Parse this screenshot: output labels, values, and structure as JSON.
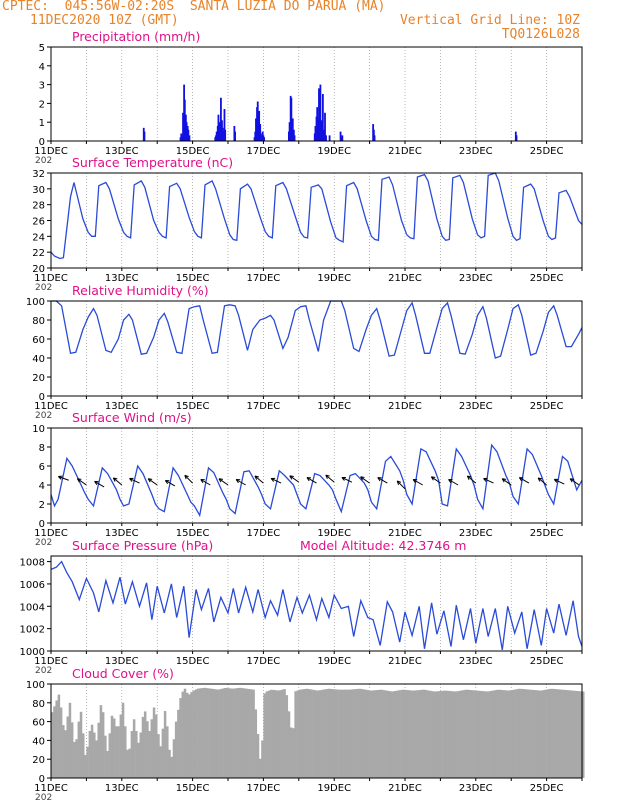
{
  "header": {
    "line1": "CPTEC:  045:56W-02:20S  SANTA LUZIA DO PARUA (MA)",
    "line2_left": "11DEC2020 10Z (GMT)",
    "line2_right": "Vertical Grid Line: 10Z",
    "line3_right": "TQ0126L028"
  },
  "colors": {
    "header": "#e8832a",
    "title": "#e0118a",
    "line": "#2a4bd7",
    "bar": "#1010e0",
    "cloud": "#a8a8a8",
    "grid": "#888888",
    "arrow": "#000000"
  },
  "x_axis": {
    "labels": [
      "11DEC",
      "13DEC",
      "15DEC",
      "17DEC",
      "19DEC",
      "21DEC",
      "23DEC",
      "25DEC"
    ],
    "label_days": [
      0,
      2,
      4,
      6,
      8,
      10,
      12,
      14
    ],
    "year_stub": "202",
    "range_days": [
      0,
      15
    ]
  },
  "chart_data": [
    {
      "id": "precip",
      "type": "bar",
      "title": "Precipitation (mm/h)",
      "ylim": [
        0,
        5
      ],
      "yticks": [
        0,
        1,
        2,
        3,
        4,
        5
      ],
      "x_unit": "day",
      "x": [
        2.62,
        2.64,
        3.66,
        3.68,
        3.71,
        3.73,
        3.76,
        3.78,
        3.81,
        3.83,
        3.86,
        3.88,
        3.91,
        4.64,
        4.66,
        4.68,
        4.71,
        4.73,
        4.76,
        4.78,
        4.8,
        4.83,
        4.85,
        4.87,
        4.9,
        4.92,
        5.18,
        5.2,
        5.75,
        5.77,
        5.79,
        5.82,
        5.84,
        5.86,
        5.88,
        5.91,
        5.93,
        5.95,
        5.98,
        6.0,
        6.02,
        6.72,
        6.74,
        6.77,
        6.79,
        6.81,
        6.83,
        6.86,
        6.88,
        7.45,
        7.47,
        7.5,
        7.52,
        7.54,
        7.57,
        7.59,
        7.61,
        7.63,
        7.66,
        7.68,
        7.7,
        7.72,
        7.74,
        7.77,
        7.87,
        8.18,
        8.2,
        8.23,
        9.1,
        9.12,
        9.14,
        13.13,
        13.15
      ],
      "values": [
        0.7,
        0.5,
        0.2,
        0.4,
        0.3,
        1.5,
        3.0,
        2.2,
        1.4,
        1.0,
        0.8,
        0.6,
        0.3,
        0.2,
        0.3,
        0.5,
        0.8,
        1.4,
        1.0,
        0.6,
        2.3,
        1.1,
        0.7,
        0.5,
        1.7,
        0.6,
        0.8,
        0.5,
        0.2,
        0.5,
        1.2,
        1.8,
        2.1,
        1.0,
        1.6,
        0.9,
        0.4,
        0.3,
        0.5,
        0.3,
        0.2,
        0.5,
        1.0,
        2.4,
        2.3,
        1.1,
        1.2,
        0.6,
        0.3,
        0.4,
        0.8,
        1.3,
        1.8,
        1.2,
        2.8,
        1.6,
        3.0,
        1.1,
        0.4,
        2.5,
        0.6,
        0.3,
        1.5,
        0.3,
        0.3,
        0.5,
        0.2,
        0.3,
        0.9,
        0.6,
        0.3,
        0.5,
        0.3
      ]
    },
    {
      "id": "temp",
      "type": "line",
      "title": "Surface Temperature (nC)",
      "ylim": [
        20,
        32
      ],
      "yticks": [
        20,
        22,
        24,
        26,
        28,
        30,
        32
      ],
      "x": [
        0,
        0.1,
        0.25,
        0.35,
        0.55,
        0.65,
        0.9,
        1.05,
        1.15,
        1.25,
        1.35,
        1.55,
        1.65,
        1.9,
        2.05,
        2.15,
        2.25,
        2.35,
        2.55,
        2.65,
        2.9,
        3.05,
        3.15,
        3.25,
        3.35,
        3.55,
        3.65,
        3.9,
        4.05,
        4.15,
        4.25,
        4.35,
        4.55,
        4.65,
        4.9,
        5.05,
        5.15,
        5.25,
        5.35,
        5.55,
        5.65,
        5.9,
        6.05,
        6.15,
        6.25,
        6.35,
        6.55,
        6.65,
        6.9,
        7.05,
        7.15,
        7.25,
        7.35,
        7.55,
        7.65,
        7.9,
        8.05,
        8.15,
        8.25,
        8.35,
        8.55,
        8.65,
        8.9,
        9.05,
        9.15,
        9.25,
        9.35,
        9.55,
        9.65,
        9.9,
        10.05,
        10.15,
        10.25,
        10.35,
        10.55,
        10.65,
        10.9,
        11.05,
        11.15,
        11.25,
        11.35,
        11.55,
        11.65,
        11.9,
        12.05,
        12.15,
        12.25,
        12.35,
        12.55,
        12.65,
        12.9,
        13.05,
        13.15,
        13.25,
        13.35,
        13.55,
        13.65,
        13.9,
        14.05,
        14.15,
        14.25,
        14.35,
        14.55,
        14.65,
        14.9,
        15.0
      ],
      "values": [
        22.0,
        21.5,
        21.2,
        21.3,
        29.0,
        30.8,
        26.2,
        24.5,
        24.0,
        24.0,
        30.4,
        30.8,
        30.0,
        26.2,
        24.5,
        24.0,
        23.8,
        30.5,
        31.0,
        30.2,
        26.0,
        24.5,
        24.0,
        23.8,
        30.3,
        30.7,
        30.0,
        26.4,
        24.6,
        24.0,
        23.8,
        30.5,
        31.0,
        30.0,
        26.2,
        24.2,
        23.6,
        23.5,
        30.0,
        30.6,
        30.0,
        26.5,
        24.6,
        24.0,
        23.8,
        30.4,
        30.8,
        30.0,
        26.5,
        24.5,
        23.9,
        23.8,
        30.2,
        30.5,
        30.0,
        25.8,
        23.8,
        23.5,
        23.3,
        30.4,
        30.8,
        30.0,
        26.0,
        24.0,
        23.6,
        23.5,
        31.2,
        31.5,
        30.5,
        26.0,
        24.2,
        23.8,
        23.7,
        31.5,
        31.8,
        31.0,
        26.2,
        24.0,
        23.5,
        23.6,
        31.4,
        31.7,
        30.8,
        26.2,
        24.2,
        23.8,
        24.0,
        31.7,
        32.0,
        31.0,
        26.3,
        24.0,
        23.5,
        23.7,
        30.2,
        30.6,
        30.0,
        26.0,
        24.0,
        23.6,
        23.8,
        29.5,
        29.8,
        29.0,
        26.0,
        25.5
      ]
    },
    {
      "id": "rh",
      "type": "line",
      "title": "Relative Humidity (%)",
      "ylim": [
        0,
        100
      ],
      "yticks": [
        0,
        20,
        40,
        60,
        80,
        100
      ],
      "x": [
        0,
        0.15,
        0.3,
        0.55,
        0.7,
        0.9,
        1.05,
        1.2,
        1.3,
        1.55,
        1.7,
        1.9,
        2.05,
        2.2,
        2.3,
        2.55,
        2.7,
        2.9,
        3.05,
        3.2,
        3.3,
        3.55,
        3.7,
        3.9,
        4.05,
        4.2,
        4.3,
        4.55,
        4.7,
        4.9,
        5.05,
        5.2,
        5.3,
        5.55,
        5.7,
        5.9,
        6.05,
        6.2,
        6.3,
        6.55,
        6.7,
        6.9,
        7.05,
        7.2,
        7.3,
        7.55,
        7.7,
        7.9,
        8.05,
        8.2,
        8.3,
        8.55,
        8.7,
        8.9,
        9.05,
        9.2,
        9.3,
        9.55,
        9.7,
        9.9,
        10.05,
        10.2,
        10.3,
        10.55,
        10.7,
        10.9,
        11.05,
        11.2,
        11.3,
        11.55,
        11.7,
        11.9,
        12.05,
        12.2,
        12.3,
        12.55,
        12.7,
        12.9,
        13.05,
        13.2,
        13.3,
        13.55,
        13.7,
        13.9,
        14.05,
        14.2,
        14.3,
        14.55,
        14.7,
        14.9,
        15.0
      ],
      "values": [
        100,
        100,
        95,
        45,
        46,
        70,
        83,
        92,
        85,
        48,
        46,
        60,
        80,
        86,
        80,
        44,
        45,
        62,
        80,
        87,
        78,
        46,
        45,
        92,
        94,
        95,
        80,
        45,
        46,
        95,
        96,
        95,
        85,
        48,
        70,
        80,
        82,
        85,
        80,
        50,
        62,
        90,
        94,
        95,
        80,
        47,
        80,
        100,
        100,
        100,
        90,
        50,
        47,
        70,
        85,
        92,
        80,
        42,
        43,
        70,
        90,
        98,
        85,
        45,
        45,
        72,
        92,
        98,
        85,
        45,
        44,
        65,
        85,
        94,
        82,
        40,
        42,
        70,
        92,
        96,
        85,
        43,
        45,
        68,
        88,
        95,
        85,
        52,
        52,
        65,
        72
      ]
    },
    {
      "id": "wind",
      "type": "line",
      "title": "Surface Wind (m/s)",
      "ylim": [
        0,
        10
      ],
      "yticks": [
        0,
        2,
        4,
        6,
        8,
        10
      ],
      "x": [
        0,
        0.1,
        0.2,
        0.45,
        0.6,
        0.85,
        0.95,
        1.05,
        1.2,
        1.45,
        1.6,
        1.85,
        1.95,
        2.05,
        2.2,
        2.45,
        2.6,
        2.85,
        2.95,
        3.05,
        3.2,
        3.45,
        3.6,
        3.85,
        3.95,
        4.05,
        4.2,
        4.45,
        4.6,
        4.85,
        4.95,
        5.05,
        5.2,
        5.45,
        5.6,
        5.85,
        5.95,
        6.05,
        6.2,
        6.45,
        6.6,
        6.85,
        6.95,
        7.05,
        7.2,
        7.45,
        7.6,
        7.85,
        7.95,
        8.05,
        8.2,
        8.45,
        8.6,
        8.85,
        8.95,
        9.05,
        9.2,
        9.45,
        9.6,
        9.85,
        9.95,
        10.05,
        10.2,
        10.45,
        10.6,
        10.85,
        10.95,
        11.05,
        11.2,
        11.45,
        11.6,
        11.85,
        11.95,
        12.05,
        12.2,
        12.45,
        12.6,
        12.85,
        12.95,
        13.05,
        13.2,
        13.45,
        13.6,
        13.85,
        13.95,
        14.05,
        14.2,
        14.45,
        14.6,
        14.85,
        15.0
      ],
      "values": [
        3.0,
        1.8,
        2.5,
        6.8,
        6.0,
        4.0,
        3.2,
        2.5,
        1.8,
        5.8,
        5.2,
        3.5,
        2.5,
        1.8,
        2.0,
        6.0,
        5.2,
        3.0,
        2.0,
        1.5,
        1.2,
        5.8,
        5.0,
        3.0,
        2.2,
        1.8,
        0.8,
        5.8,
        5.3,
        3.2,
        2.5,
        1.5,
        1.0,
        5.4,
        5.5,
        3.8,
        3.0,
        2.0,
        1.5,
        5.5,
        5.0,
        4.0,
        3.0,
        2.0,
        1.5,
        5.2,
        5.0,
        4.0,
        3.5,
        2.5,
        1.2,
        5.0,
        5.2,
        4.2,
        3.5,
        2.2,
        1.5,
        6.5,
        7.0,
        5.5,
        4.5,
        3.0,
        2.0,
        7.8,
        7.5,
        5.5,
        4.5,
        2.0,
        1.8,
        7.8,
        7.0,
        5.0,
        4.0,
        2.5,
        1.5,
        8.2,
        7.5,
        5.0,
        4.2,
        2.8,
        2.0,
        7.8,
        7.2,
        5.0,
        4.0,
        3.0,
        2.0,
        7.0,
        6.5,
        3.5,
        4.5
      ],
      "arrows_x": [
        0.5,
        1.0,
        1.5,
        2.0,
        2.5,
        3.0,
        3.5,
        4.0,
        4.5,
        5.0,
        5.5,
        6.0,
        6.5,
        7.0,
        7.5,
        8.0,
        8.5,
        9.0,
        9.5,
        10.0,
        10.5,
        11.0,
        11.5,
        12.0,
        12.5,
        13.0,
        13.5,
        14.0,
        14.5,
        14.92
      ],
      "arrows_y": [
        4.5,
        4.0,
        3.8,
        4.0,
        4.2,
        4.0,
        3.9,
        4.2,
        4.0,
        4.0,
        4.0,
        4.2,
        4.2,
        4.3,
        4.2,
        4.3,
        4.3,
        4.2,
        4.2,
        3.6,
        4.0,
        4.2,
        4.0,
        4.2,
        4.2,
        4.0,
        4.2,
        4.0,
        4.1,
        4.0
      ],
      "arrows_dir": [
        200,
        215,
        210,
        220,
        205,
        215,
        210,
        225,
        210,
        215,
        210,
        220,
        205,
        215,
        210,
        220,
        205,
        215,
        210,
        225,
        210,
        215,
        210,
        220,
        205,
        215,
        210,
        220,
        205,
        215
      ]
    },
    {
      "id": "pres",
      "type": "line",
      "title": "Surface Pressure (hPa)",
      "annotation": "Model Altitude: 42.3746 m",
      "ylim": [
        1000,
        1008.5
      ],
      "yticks": [
        1000,
        1002,
        1004,
        1006,
        1008
      ],
      "x": [
        0,
        0.15,
        0.3,
        0.45,
        0.6,
        0.8,
        1.0,
        1.2,
        1.35,
        1.55,
        1.75,
        1.95,
        2.1,
        2.3,
        2.5,
        2.7,
        2.85,
        3.0,
        3.2,
        3.4,
        3.55,
        3.75,
        3.9,
        4.1,
        4.25,
        4.45,
        4.6,
        4.8,
        5.0,
        5.15,
        5.3,
        5.5,
        5.7,
        5.85,
        6.05,
        6.2,
        6.4,
        6.55,
        6.75,
        6.95,
        7.1,
        7.3,
        7.5,
        7.65,
        7.85,
        8.0,
        8.2,
        8.4,
        8.55,
        8.75,
        8.95,
        9.1,
        9.3,
        9.5,
        9.65,
        9.85,
        10.0,
        10.2,
        10.4,
        10.55,
        10.75,
        10.9,
        11.1,
        11.3,
        11.45,
        11.65,
        11.85,
        12.0,
        12.2,
        12.35,
        12.55,
        12.75,
        12.9,
        13.1,
        13.3,
        13.45,
        13.65,
        13.85,
        14.0,
        14.2,
        14.35,
        14.55,
        14.75,
        14.9,
        15.0
      ],
      "values": [
        1007.3,
        1007.5,
        1008.0,
        1007.0,
        1006.2,
        1004.6,
        1006.5,
        1005.2,
        1003.5,
        1006.3,
        1004.3,
        1006.6,
        1004.2,
        1006.2,
        1004.0,
        1006.1,
        1002.8,
        1005.8,
        1003.4,
        1006.0,
        1003.0,
        1005.8,
        1001.2,
        1005.5,
        1003.7,
        1005.6,
        1002.6,
        1004.8,
        1003.4,
        1005.6,
        1003.4,
        1005.7,
        1003.5,
        1005.5,
        1003.0,
        1004.5,
        1003.2,
        1005.5,
        1002.6,
        1004.8,
        1003.4,
        1005.0,
        1002.8,
        1004.7,
        1003.0,
        1005.0,
        1003.8,
        1004.0,
        1001.3,
        1004.5,
        1003.0,
        1002.8,
        1000.5,
        1004.4,
        1003.5,
        1000.8,
        1003.5,
        1001.4,
        1004.0,
        1000.2,
        1004.3,
        1001.5,
        1003.6,
        1000.4,
        1004.1,
        1001.0,
        1003.8,
        1000.7,
        1003.8,
        1001.3,
        1003.8,
        1000.1,
        1004.0,
        1001.6,
        1003.5,
        1000.2,
        1003.7,
        1000.5,
        1003.8,
        1001.6,
        1004.2,
        1001.4,
        1004.5,
        1001.3,
        1000.4
      ]
    },
    {
      "id": "cloud",
      "type": "area",
      "title": "Cloud Cover (%)",
      "ylim": [
        0,
        100
      ],
      "yticks": [
        0,
        20,
        40,
        60,
        80,
        100
      ],
      "x": [
        0,
        0.2,
        0.35,
        0.5,
        0.65,
        0.8,
        0.95,
        1.1,
        1.25,
        1.4,
        1.55,
        1.7,
        1.85,
        2.0,
        2.15,
        2.3,
        2.45,
        2.6,
        2.75,
        2.9,
        3.05,
        3.2,
        3.35,
        3.5,
        3.65,
        3.75,
        3.85,
        3.95,
        4.1,
        4.3,
        4.5,
        4.7,
        4.9,
        5.1,
        5.3,
        5.5,
        5.7,
        5.9,
        6.0,
        6.05,
        6.2,
        6.4,
        6.6,
        6.8,
        6.85,
        7.0,
        7.2,
        7.5,
        7.8,
        8.1,
        8.4,
        8.7,
        9.0,
        9.3,
        9.6,
        9.9,
        10.2,
        10.5,
        10.8,
        11.1,
        11.4,
        11.7,
        12.0,
        12.3,
        12.6,
        12.9,
        13.2,
        13.5,
        13.8,
        14.1,
        14.4,
        14.7,
        15.0
      ],
      "values": [
        70,
        90,
        45,
        80,
        30,
        75,
        20,
        60,
        40,
        85,
        25,
        70,
        50,
        80,
        20,
        65,
        35,
        75,
        50,
        80,
        30,
        75,
        15,
        60,
        90,
        95,
        88,
        92,
        95,
        96,
        95,
        94,
        96,
        95,
        96,
        95,
        94,
        10,
        90,
        92,
        94,
        93,
        95,
        40,
        92,
        94,
        95,
        93,
        95,
        94,
        94,
        95,
        93,
        94,
        92,
        94,
        93,
        94,
        92,
        93,
        92,
        94,
        93,
        92,
        94,
        93,
        95,
        94,
        93,
        95,
        94,
        93,
        92
      ]
    }
  ]
}
